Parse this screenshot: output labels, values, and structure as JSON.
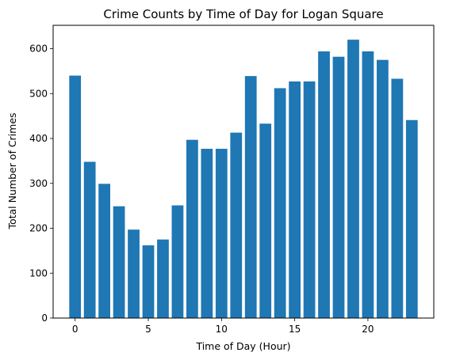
{
  "chart_data": {
    "type": "bar",
    "title": "Crime Counts by Time of Day for Logan Square",
    "xlabel": "Time of Day (Hour)",
    "ylabel": "Total Number of Crimes",
    "x": [
      0,
      1,
      2,
      3,
      4,
      5,
      6,
      7,
      8,
      9,
      10,
      11,
      12,
      13,
      14,
      15,
      16,
      17,
      18,
      19,
      20,
      21,
      22,
      23
    ],
    "values": [
      540,
      348,
      299,
      249,
      197,
      162,
      175,
      251,
      397,
      377,
      377,
      413,
      539,
      433,
      512,
      527,
      527,
      594,
      582,
      620,
      594,
      575,
      533,
      441
    ],
    "xlim": [
      -1.5,
      24.5
    ],
    "ylim": [
      0,
      652
    ],
    "xticks": [
      0,
      5,
      10,
      15,
      20
    ],
    "xtick_labels": [
      "0",
      "5",
      "10",
      "15",
      "20"
    ],
    "yticks": [
      0,
      100,
      200,
      300,
      400,
      500,
      600
    ],
    "ytick_labels": [
      "0",
      "100",
      "200",
      "300",
      "400",
      "500",
      "600"
    ],
    "bar_color": "#1f77b4",
    "grid": false,
    "legend": "none"
  }
}
